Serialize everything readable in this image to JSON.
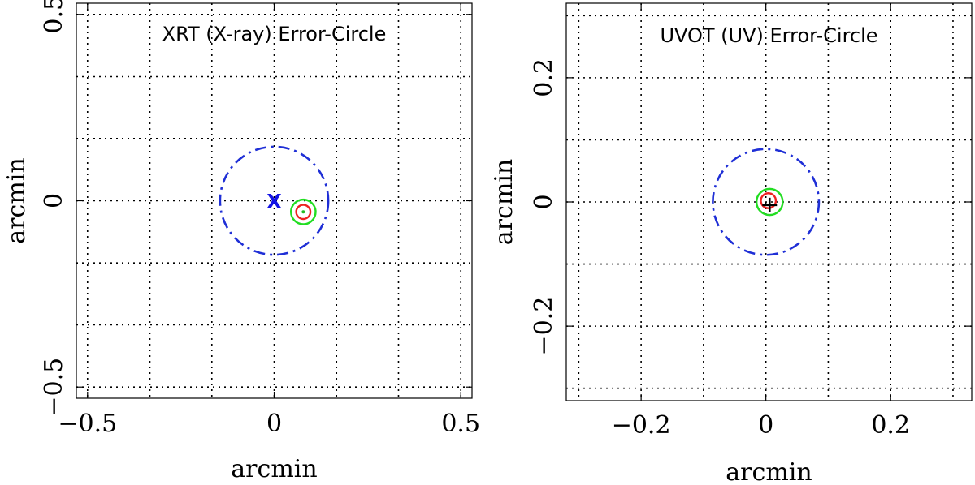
{
  "chart_data": [
    {
      "type": "scatter",
      "title": "XRT (X-ray) Error-Circle",
      "xlabel": "arcmin",
      "ylabel": "arcmin",
      "xlim": [
        -0.53,
        0.53
      ],
      "ylim": [
        -0.53,
        0.53
      ],
      "xticks": [
        -0.5,
        0,
        0.5
      ],
      "xtick_labels": [
        "−0.5",
        "0",
        "0.5"
      ],
      "yticks": [
        -0.5,
        0,
        0.5
      ],
      "ytick_labels": [
        "−0.5",
        "0",
        "0.5"
      ],
      "grid": true,
      "grid_lines": [
        -0.5,
        -0.333,
        -0.167,
        0,
        0.167,
        0.333,
        0.5
      ],
      "marker": {
        "symbol": "X",
        "x": 0,
        "y": 0,
        "color": "#1414e6"
      },
      "circles": [
        {
          "x": 0,
          "y": 0,
          "r": 0.145,
          "color": "#1f2fd6",
          "style": "dashdot"
        },
        {
          "x": 0.078,
          "y": -0.03,
          "r": 0.033,
          "color": "#22dd22",
          "style": "solid"
        },
        {
          "x": 0.078,
          "y": -0.03,
          "r": 0.019,
          "color": "#ee2222",
          "style": "solid"
        }
      ],
      "points": [
        {
          "x": 0.078,
          "y": -0.03,
          "color": "#22bb22"
        }
      ]
    },
    {
      "type": "scatter",
      "title": "UVOT (UV) Error-Circle",
      "xlabel": "arcmin",
      "ylabel": "arcmin",
      "xlim": [
        -0.32,
        0.33
      ],
      "ylim": [
        -0.32,
        0.32
      ],
      "xticks": [
        -0.2,
        0,
        0.2
      ],
      "xtick_labels": [
        "−0.2",
        "0",
        "0.2"
      ],
      "yticks": [
        -0.2,
        0,
        0.2
      ],
      "ytick_labels": [
        "−0.2",
        "0",
        "0.2"
      ],
      "grid": true,
      "grid_lines": [
        -0.3,
        -0.2,
        -0.1,
        0,
        0.1,
        0.2,
        0.3
      ],
      "marker": {
        "symbol": "+",
        "x": 0.006,
        "y": -0.005,
        "color": "#000000"
      },
      "circles": [
        {
          "x": 0,
          "y": 0,
          "r": 0.085,
          "color": "#1f2fd6",
          "style": "dashdot"
        },
        {
          "x": 0.006,
          "y": 0,
          "r": 0.021,
          "color": "#22dd22",
          "style": "solid"
        },
        {
          "x": 0.004,
          "y": 0.002,
          "r": 0.012,
          "color": "#ee2222",
          "style": "solid"
        }
      ],
      "points": []
    }
  ]
}
